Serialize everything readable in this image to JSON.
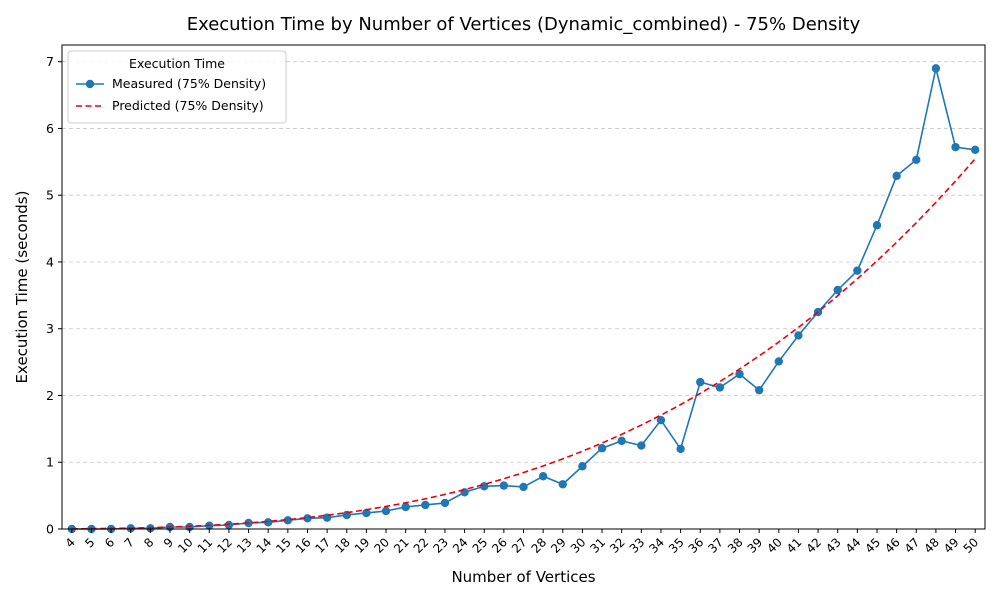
{
  "chart_data": {
    "type": "line",
    "title": "Execution Time by Number of Vertices (Dynamic_combined) - 75% Density",
    "xlabel": "Number of Vertices",
    "ylabel": "Execution Time (seconds)",
    "ylim": [
      0,
      7.25
    ],
    "yticks": [
      0,
      1,
      2,
      3,
      4,
      5,
      6,
      7
    ],
    "grid": "y-dashed",
    "legend": {
      "title": "Execution Time",
      "position": "top-left"
    },
    "categories": [
      "4",
      "5",
      "6",
      "7",
      "8",
      "9",
      "10",
      "11",
      "12",
      "13",
      "14",
      "15",
      "16",
      "17",
      "18",
      "19",
      "20",
      "21",
      "22",
      "23",
      "24",
      "25",
      "26",
      "27",
      "28",
      "29",
      "30",
      "31",
      "32",
      "33",
      "34",
      "35",
      "36",
      "37",
      "38",
      "39",
      "40",
      "41",
      "42",
      "43",
      "44",
      "45",
      "46",
      "47",
      "48",
      "49",
      "50"
    ],
    "series": [
      {
        "name": "Measured (75% Density)",
        "color": "#1f77b4",
        "style": "solid-marker",
        "values": [
          0.0,
          0.0,
          0.0,
          0.01,
          0.01,
          0.03,
          0.03,
          0.05,
          0.06,
          0.09,
          0.1,
          0.13,
          0.16,
          0.17,
          0.21,
          0.24,
          0.27,
          0.33,
          0.36,
          0.39,
          0.55,
          0.64,
          0.65,
          0.63,
          0.79,
          0.67,
          0.94,
          1.21,
          1.32,
          1.25,
          1.63,
          1.2,
          2.2,
          2.12,
          2.32,
          2.08,
          2.51,
          2.9,
          3.25,
          3.58,
          3.87,
          4.55,
          5.29,
          5.53,
          6.9,
          5.72,
          5.68
        ]
      },
      {
        "name": "Predicted (75% Density)",
        "color": "#e8000b",
        "style": "dashed",
        "values": [
          0.002,
          0.005,
          0.009,
          0.014,
          0.021,
          0.03,
          0.041,
          0.055,
          0.072,
          0.091,
          0.114,
          0.141,
          0.171,
          0.206,
          0.245,
          0.289,
          0.338,
          0.392,
          0.452,
          0.518,
          0.59,
          0.668,
          0.753,
          0.845,
          0.944,
          1.05,
          1.165,
          1.287,
          1.418,
          1.557,
          1.706,
          1.863,
          2.031,
          2.208,
          2.395,
          2.593,
          2.801,
          3.02,
          3.251,
          3.494,
          3.748,
          4.015,
          4.295,
          4.587,
          4.893,
          5.212,
          5.545
        ]
      }
    ]
  }
}
